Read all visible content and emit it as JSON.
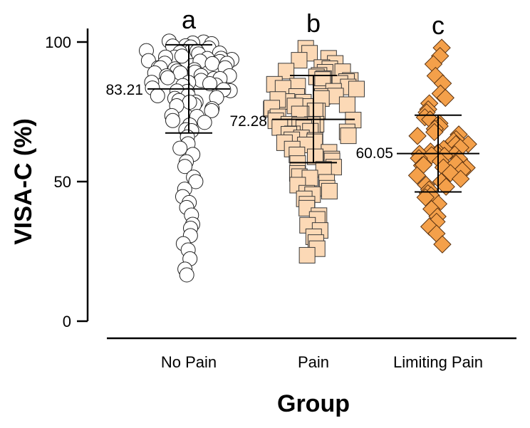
{
  "chart_data": {
    "type": "scatter",
    "xlabel": "Group",
    "ylabel": "VISA-C (%)",
    "ylim": [
      0,
      100
    ],
    "yticks": [
      "0",
      "50",
      "100"
    ],
    "categories": [
      "No Pain",
      "Pain",
      "Limiting Pain"
    ],
    "significance_letters": [
      "a",
      "b",
      "c"
    ],
    "mean_labels": [
      "83.21",
      "72.28",
      "60.05"
    ],
    "groups": [
      {
        "category": "No Pain",
        "marker": "circle",
        "fill": "#ffffff",
        "stroke": "#222222",
        "mean": 83.21,
        "sd_low": 67.4,
        "sd_high": 99.0,
        "values": [
          100,
          100,
          100,
          99,
          99,
          99,
          98,
          98,
          98,
          97,
          97,
          97,
          96,
          96,
          96,
          95,
          95,
          95,
          94,
          94,
          94,
          93,
          93,
          93,
          92,
          92,
          92,
          91,
          91,
          91,
          90,
          90,
          90,
          89,
          89,
          89,
          88,
          88,
          88,
          87,
          87,
          87,
          86,
          86,
          86,
          85,
          85,
          84,
          84,
          83,
          83,
          82,
          82,
          81,
          81,
          80,
          80,
          79,
          79,
          78,
          78,
          77,
          76,
          75,
          74,
          73,
          72,
          71,
          70,
          69,
          68,
          66,
          64,
          62,
          60,
          57,
          55,
          52,
          50,
          47,
          45,
          43,
          41,
          38,
          35,
          33,
          31,
          28,
          25,
          22,
          19,
          17
        ]
      },
      {
        "category": "Pain",
        "marker": "square",
        "fill": "#fcd9b6",
        "stroke": "#3a3a3a",
        "mean": 72.28,
        "sd_low": 56.8,
        "sd_high": 88.0,
        "values": [
          98,
          96,
          94,
          93,
          92,
          91,
          90,
          90,
          89,
          89,
          88,
          88,
          87,
          87,
          86,
          86,
          85,
          85,
          84,
          84,
          83,
          83,
          82,
          82,
          81,
          81,
          80,
          80,
          79,
          79,
          78,
          78,
          77,
          77,
          76,
          76,
          75,
          75,
          74,
          74,
          73,
          73,
          72,
          72,
          71,
          71,
          70,
          70,
          69,
          69,
          68,
          68,
          67,
          67,
          66,
          66,
          65,
          65,
          64,
          64,
          63,
          62,
          61,
          60,
          59,
          58,
          57,
          56,
          55,
          54,
          53,
          52,
          51,
          50,
          49,
          48,
          47,
          46,
          45,
          44,
          42,
          40,
          38,
          36,
          34,
          32,
          30,
          28,
          26,
          24
        ]
      },
      {
        "category": "Limiting Pain",
        "marker": "diamond",
        "fill": "#f4a04a",
        "stroke": "#5a3210",
        "mean": 60.05,
        "sd_low": 46.3,
        "sd_high": 73.8,
        "values": [
          98,
          95,
          92,
          88,
          85,
          82,
          80,
          78,
          76,
          75,
          73,
          72,
          71,
          70,
          69,
          68,
          67,
          66,
          65,
          64,
          63,
          63,
          62,
          62,
          61,
          61,
          60,
          60,
          60,
          59,
          59,
          58,
          58,
          57,
          57,
          56,
          56,
          55,
          55,
          54,
          53,
          52,
          51,
          50,
          49,
          48,
          47,
          46,
          45,
          44,
          42,
          40,
          38,
          36,
          34,
          31,
          28
        ]
      }
    ]
  }
}
